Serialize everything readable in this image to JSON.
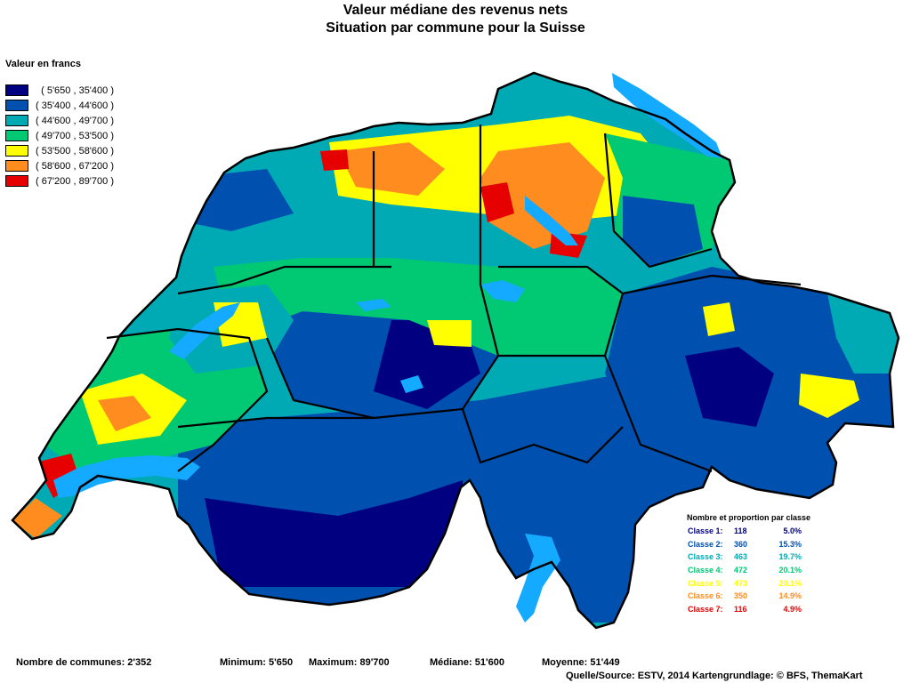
{
  "title": {
    "line1": "Valeur médiane des revenus nets",
    "line2": "Situation par commune pour la Suisse"
  },
  "legend": {
    "title": "Valeur en francs",
    "classes": [
      {
        "label": "  ( 5'650 , 35'400 )",
        "color": "#000080"
      },
      {
        "label": "( 35'400 , 44'600 )",
        "color": "#0050B0"
      },
      {
        "label": "( 44'600 , 49'700 )",
        "color": "#00AAB4"
      },
      {
        "label": "( 49'700 , 53'500 )",
        "color": "#00C873"
      },
      {
        "label": "( 53'500 , 58'600 )",
        "color": "#FFFF00"
      },
      {
        "label": "( 58'600 , 67'200 )",
        "color": "#FF8C1E"
      },
      {
        "label": "( 67'200 , 89'700 )",
        "color": "#E60000"
      }
    ]
  },
  "stats": {
    "title": "Nombre et proportion par classe",
    "rows": [
      {
        "label": "Classe  1:",
        "count": "118",
        "pct": "5.0%",
        "color": "#000080"
      },
      {
        "label": "Classe  2:",
        "count": "360",
        "pct": "15.3%",
        "color": "#0050B0"
      },
      {
        "label": "Classe  3:",
        "count": "463",
        "pct": "19.7%",
        "color": "#00AAB4"
      },
      {
        "label": "Classe  4:",
        "count": "472",
        "pct": "20.1%",
        "color": "#00C873"
      },
      {
        "label": "Classe  5:",
        "count": "473",
        "pct": "20.1%",
        "color": "#FFFF00"
      },
      {
        "label": "Classe  6:",
        "count": "350",
        "pct": "14.9%",
        "color": "#FF8C1E"
      },
      {
        "label": "Classe  7:",
        "count": "116",
        "pct": "4.9%",
        "color": "#E60000"
      }
    ]
  },
  "footer": {
    "communes": "Nombre de communes: 2'352",
    "minimum": "Minimum: 5'650",
    "maximum": "Maximum: 89'700",
    "mediane": "Médiane: 51'600",
    "moyenne": "Moyenne: 51'449",
    "source": "Quelle/Source: ESTV, 2014 Kartengrundlage: © BFS, ThemaKart"
  },
  "colors": {
    "lake": "#14AAFF",
    "border": "#000000"
  }
}
